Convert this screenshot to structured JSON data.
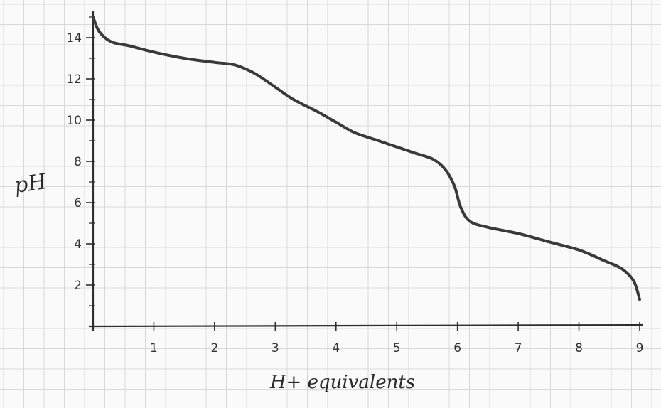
{
  "chart_data": {
    "type": "line",
    "title": "",
    "xlabel": "H+ equivalents",
    "ylabel": "pH",
    "xlim": [
      0,
      9
    ],
    "ylim": [
      0,
      15
    ],
    "xticks": [
      1,
      2,
      3,
      4,
      5,
      6,
      7,
      8,
      9
    ],
    "xtick_labels": [
      "1",
      "2",
      "3",
      "4",
      "5",
      "6",
      "7",
      "8",
      "9"
    ],
    "yticks": [
      2,
      4,
      6,
      8,
      10,
      12,
      14
    ],
    "ytick_labels": [
      "2",
      "4",
      "6",
      "8",
      "10",
      "12",
      "14"
    ],
    "grid": true,
    "series": [
      {
        "x": [
          0,
          0.1,
          0.3,
          0.6,
          1.0,
          1.5,
          2.0,
          2.3,
          2.5,
          2.7,
          3.0,
          3.3,
          3.7,
          4.0,
          4.3,
          4.7,
          5.0,
          5.3,
          5.6,
          5.8,
          5.95,
          6.05,
          6.2,
          6.5,
          7.0,
          7.5,
          8.0,
          8.4,
          8.7,
          8.9,
          9.0
        ],
        "y": [
          15,
          14.3,
          13.8,
          13.6,
          13.3,
          13.0,
          12.8,
          12.7,
          12.5,
          12.2,
          11.6,
          11.0,
          10.4,
          9.9,
          9.4,
          9.0,
          8.7,
          8.4,
          8.1,
          7.6,
          6.8,
          5.8,
          5.1,
          4.8,
          4.5,
          4.1,
          3.7,
          3.2,
          2.8,
          2.2,
          1.3
        ]
      }
    ],
    "line_color": "#3a3a3a",
    "grid_color": "#d9d9d9",
    "paper_color": "#fafafa"
  }
}
